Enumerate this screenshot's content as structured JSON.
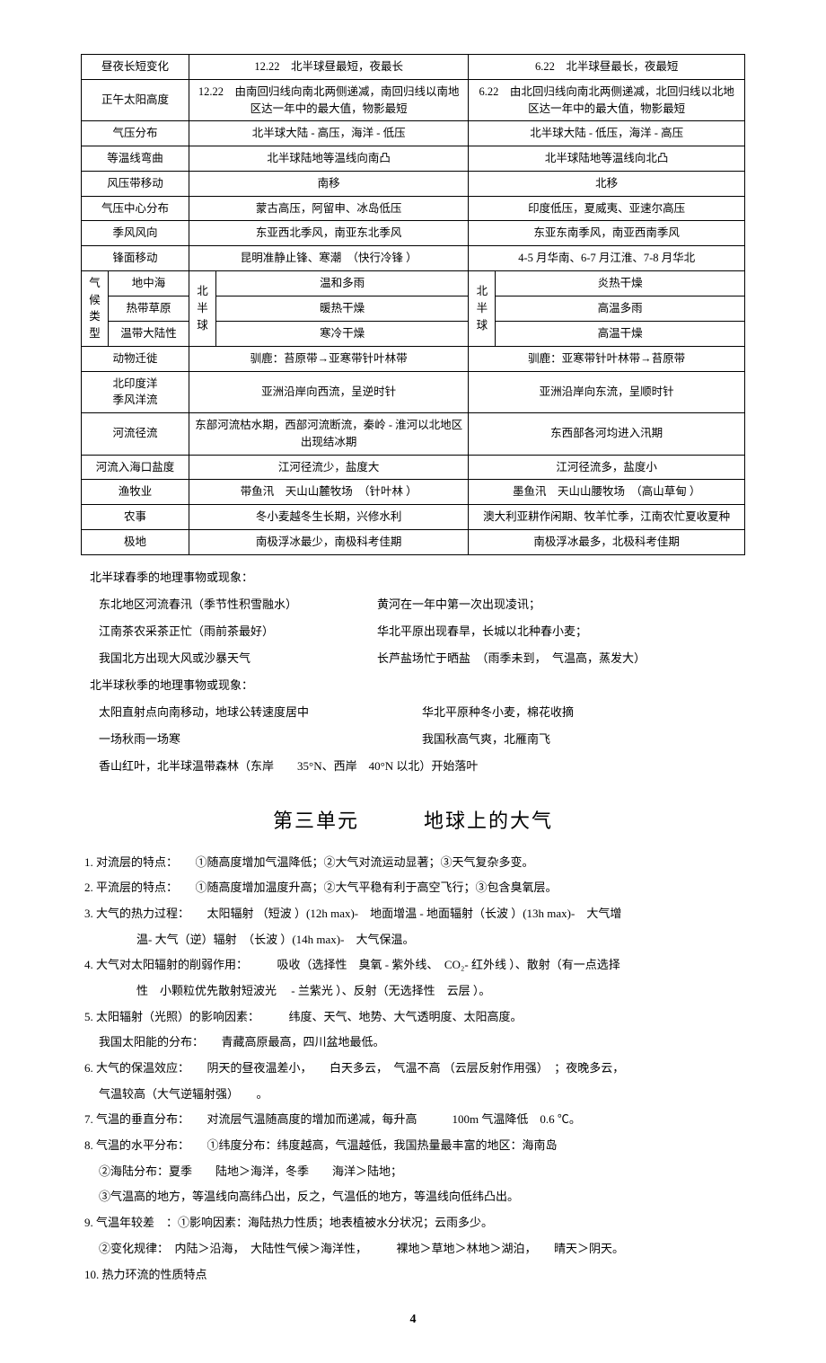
{
  "table": {
    "rows": [
      {
        "label": "昼夜长短变化",
        "c1": "12.22　北半球昼最短，夜最长",
        "c2": "6.22　北半球昼最长，夜最短"
      },
      {
        "label": "正午太阳高度",
        "c1": "12.22　由南回归线向南北两侧递减，南回归线以南地区达一年中的最大值，物影最短",
        "c2": "6.22　由北回归线向南北两侧递减，北回归线以北地区达一年中的最大值，物影最短"
      },
      {
        "label": "气压分布",
        "c1": "北半球大陆 - 高压，海洋 - 低压",
        "c2": "北半球大陆 - 低压，海洋 - 高压"
      },
      {
        "label": "等温线弯曲",
        "c1": "北半球陆地等温线向南凸",
        "c2": "北半球陆地等温线向北凸"
      },
      {
        "label": "风压带移动",
        "c1": "南移",
        "c2": "北移"
      },
      {
        "label": "气压中心分布",
        "c1": "蒙古高压，阿留申、冰岛低压",
        "c2": "印度低压，夏威夷、亚速尔高压"
      },
      {
        "label": "季风风向",
        "c1": "东亚西北季风，南亚东北季风",
        "c2": "东亚东南季风，南亚西南季风"
      },
      {
        "label": "锋面移动",
        "c1": "昆明准静止锋、寒潮　（快行冷锋 ）",
        "c2": "4-5 月华南、6-7 月江淮、7-8 月华北"
      }
    ],
    "climate": {
      "group_label": "气候类型",
      "hemi_left": "北半球",
      "hemi_right": "北半球",
      "items": [
        {
          "type": "地中海",
          "l": "温和多雨",
          "r": "炎热干燥"
        },
        {
          "type": "热带草原",
          "l": "暖热干燥",
          "r": "高温多雨"
        },
        {
          "type": "温带大陆性",
          "l": "寒冷干燥",
          "r": "高温干燥"
        }
      ]
    },
    "rows2": [
      {
        "label": "动物迁徙",
        "c1": "驯鹿：苔原带→亚寒带针叶林带",
        "c2": "驯鹿：亚寒带针叶林带→苔原带"
      },
      {
        "label": "北印度洋\n季风洋流",
        "c1": "亚洲沿岸向西流，呈逆时针",
        "c2": "亚洲沿岸向东流，呈顺时针"
      },
      {
        "label": "河流径流",
        "c1": "东部河流枯水期，西部河流断流，秦岭 - 淮河以北地区出现结冰期",
        "c2": "东西部各河均进入汛期"
      },
      {
        "label": "河流入海口盐度",
        "c1": "江河径流少，盐度大",
        "c2": "江河径流多，盐度小"
      },
      {
        "label": "渔牧业",
        "c1": "带鱼汛　天山山麓牧场　（针叶林 ）",
        "c2": "墨鱼汛　天山山腰牧场　（高山草甸 ）"
      },
      {
        "label": "农事",
        "c1": "冬小麦越冬生长期，兴修水利",
        "c2": "澳大利亚耕作闲期、牧羊忙季，江南农忙夏收夏种"
      },
      {
        "label": "极地",
        "c1": "南极浮冰最少，南极科考佳期",
        "c2": "南极浮冰最多，北极科考佳期"
      }
    ]
  },
  "spring": {
    "title": "北半球春季的地理事物或现象：",
    "items": [
      {
        "l": "东北地区河流春汛（季节性积雪融水）",
        "r": "黄河在一年中第一次出现凌讯；"
      },
      {
        "l": "江南茶农采茶正忙（雨前茶最好）",
        "r": "华北平原出现春旱，长城以北种春小麦；"
      },
      {
        "l": "我国北方出现大风或沙暴天气",
        "r": "长芦盐场忙于晒盐　（雨季未到，　气温高，蒸发大）"
      }
    ]
  },
  "autumn": {
    "title": "北半球秋季的地理事物或现象：",
    "items": [
      {
        "l": "太阳直射点向南移动，地球公转速度居中",
        "r": "华北平原种冬小麦，棉花收摘"
      },
      {
        "l": "一场秋雨一场寒",
        "r": "我国秋高气爽，北雁南飞"
      }
    ],
    "last": "香山红叶，北半球温带森林（东岸　　35°N、西岸　40°N 以北）开始落叶"
  },
  "unit3": {
    "heading": "第三单元　　　地球上的大气",
    "items": [
      "1. 对流层的特点：　　①随高度增加气温降低；②大气对流运动显著；③天气复杂多变。",
      "2. 平流层的特点：　　①随高度增加温度升高；②大气平稳有利于高空飞行；③包含臭氧层。",
      "3. 大气的热力过程：　　太阳辐射 （短波 ）(12h max)-　地面增温 - 地面辐射（长波 ）(13h max)-　大气增",
      "4. 大气对太阳辐射的削弱作用：　　　吸收（选择性　臭氧 - 紫外线、　CO₂- 红外线 ）、散射（有一点选择",
      "5. 太阳辐射（光照）的影响因素：　　　纬度、天气、地势、大气透明度、太阳高度。",
      "6. 大气的保温效应：　　阴天的昼夜温差小，　　白天多云，　气温不高 （云层反射作用强）　；夜晚多云，",
      "7. 气温的垂直分布：　　对流层气温随高度的增加而递减，每升高　　　100m 气温降低　0.6 ℃。",
      "8. 气温的水平分布：　　①纬度分布：纬度越高，气温越低，我国热量最丰富的地区：海南岛",
      "9. 气温年较差　：①影响因素：海陆热力性质；地表植被水分状况；云雨多少。",
      "10. 热力环流的性质特点"
    ],
    "cont3": "温- 大气（逆）辐射　（长波 ）(14h max)-　大气保温。",
    "cont4": "性　小颗粒优先散射短波光　  - 兰紫光 ）、反射（无选择性　云层 ）。",
    "cont5": "我国太阳能的分布：　　青藏高原最高，四川盆地最低。",
    "cont6": "气温较高（大气逆辐射强）　　。",
    "cont8a": "②海陆分布：夏季　　陆地＞海洋，冬季　　海洋＞陆地；",
    "cont8b": "③气温高的地方，等温线向高纬凸出，反之，气温低的地方，等温线向低纬凸出。",
    "cont9": "②变化规律：　内陆＞沿海，　大陆性气候＞海洋性，　　　裸地＞草地＞林地＞湖泊，　　晴天＞阴天。"
  },
  "page": "4"
}
